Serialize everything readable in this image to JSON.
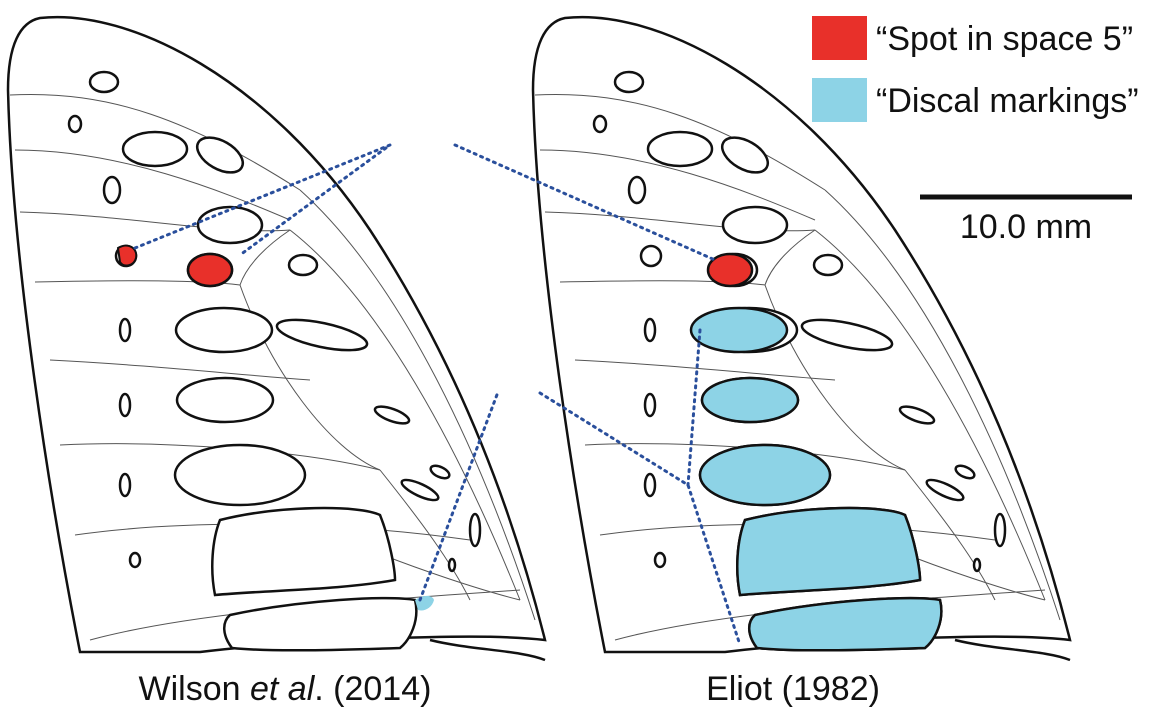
{
  "legend": {
    "items": [
      {
        "label": "“Spot in space 5”",
        "color": "#e8302a"
      },
      {
        "label": "“Discal markings”",
        "color": "#8dd3e6"
      }
    ]
  },
  "scale_bar": {
    "label": "10.0 mm"
  },
  "panels": [
    {
      "caption": [
        "Wilson ",
        "et al",
        ". (2014)"
      ]
    },
    {
      "caption": [
        "Eliot (1982)"
      ]
    }
  ]
}
